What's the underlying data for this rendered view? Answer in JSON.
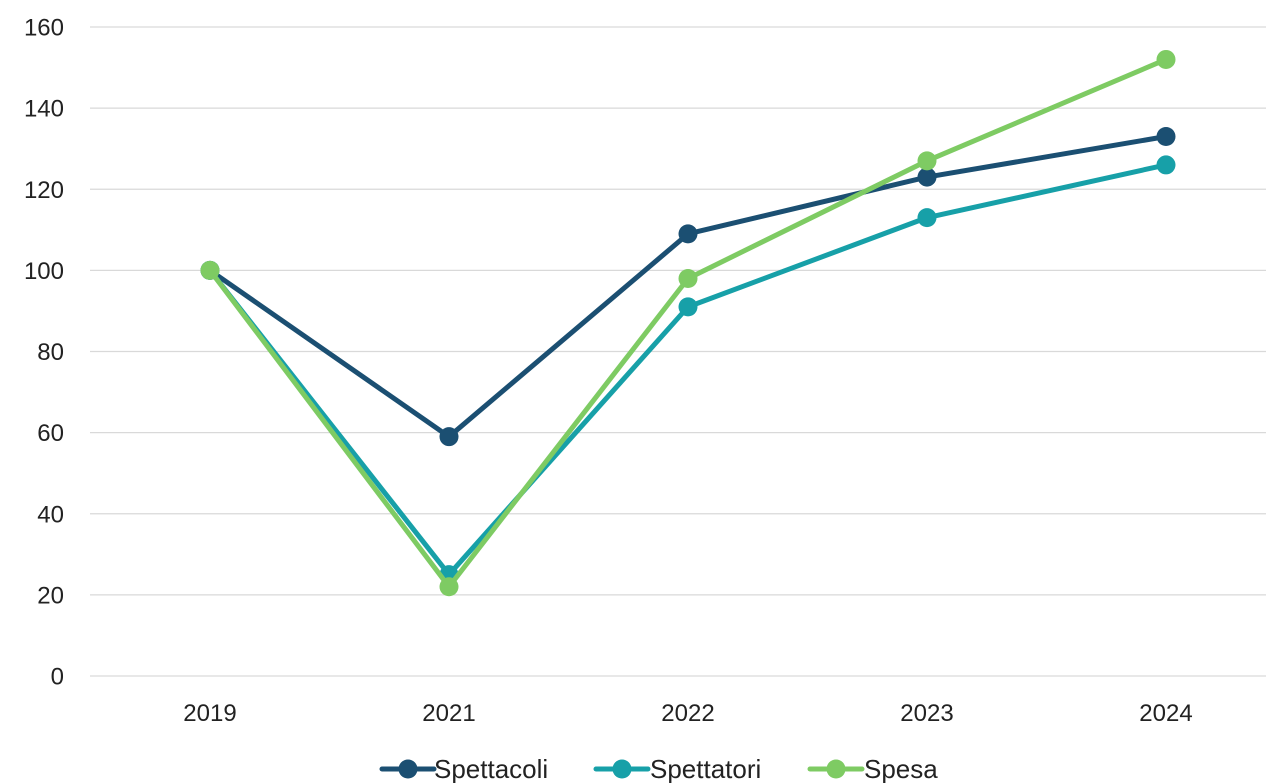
{
  "chart_data": {
    "type": "line",
    "title": "",
    "xlabel": "",
    "ylabel": "",
    "categories": [
      "2019",
      "2021",
      "2022",
      "2023",
      "2024"
    ],
    "ylim": [
      0,
      160
    ],
    "yticks": [
      0,
      20,
      40,
      60,
      80,
      100,
      120,
      140,
      160
    ],
    "grid": true,
    "legend_position": "bottom",
    "series": [
      {
        "name": "Spettacoli",
        "color": "#1b4f72",
        "values": [
          100,
          59,
          109,
          123,
          133
        ]
      },
      {
        "name": "Spettatori",
        "color": "#17a0a8",
        "values": [
          100,
          25,
          91,
          113,
          126
        ]
      },
      {
        "name": "Spesa",
        "color": "#7ecb63",
        "values": [
          100,
          22,
          98,
          127,
          152
        ]
      }
    ]
  }
}
